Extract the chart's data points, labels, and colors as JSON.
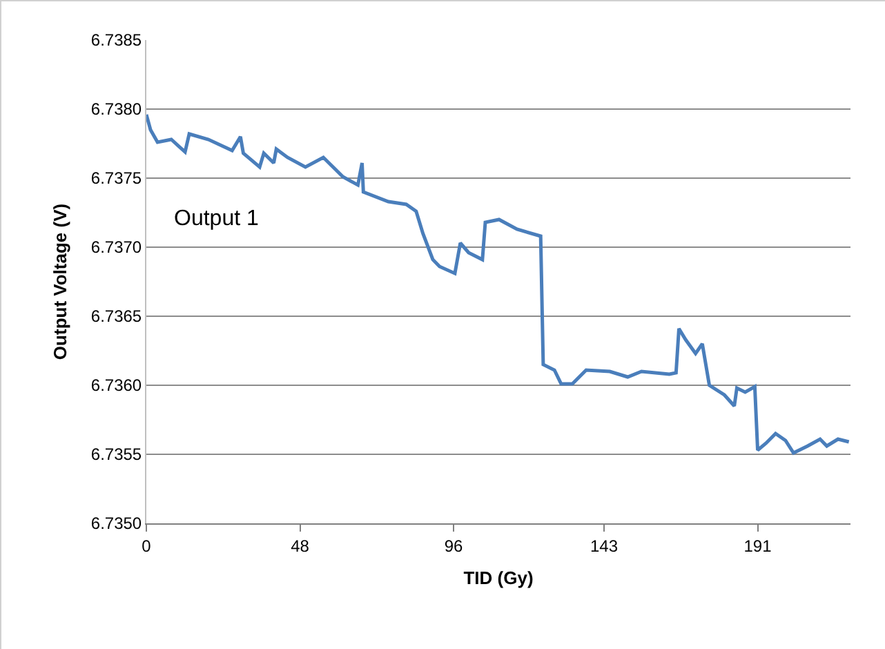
{
  "chart_data": {
    "type": "line",
    "xlabel": "TID (Gy)",
    "ylabel": "Output Voltage (V)",
    "annotations": [
      "Output 1"
    ],
    "x": [
      0,
      1.3,
      3.5,
      7.8,
      12.1,
      13.4,
      19.4,
      26.8,
      29.4,
      30.3,
      35.4,
      36.7,
      39.8,
      40.6,
      44.1,
      49.7,
      55.3,
      61.4,
      66.1,
      67.4,
      67.8,
      75.6,
      81.2,
      84.3,
      86.4,
      89.5,
      91.6,
      96.4,
      98.1,
      100.7,
      105.0,
      105.9,
      110.2,
      115.8,
      123.2,
      124.0,
      127.5,
      129.6,
      133.1,
      137.4,
      144.8,
      150.4,
      154.7,
      163.4,
      165.5,
      166.4,
      168.5,
      171.6,
      173.7,
      175.9,
      180.6,
      183.7,
      184.5,
      187.1,
      190.1,
      191.0,
      193.6,
      196.6,
      199.7,
      202.2,
      206.6,
      210.5,
      212.6,
      216.1,
      219.5
    ],
    "series": [
      {
        "color": "#4a7ebb",
        "values": [
          6.73796,
          6.73785,
          6.73776,
          6.73778,
          6.73769,
          6.73782,
          6.73778,
          6.7377,
          6.7378,
          6.73768,
          6.73758,
          6.73768,
          6.73761,
          6.73771,
          6.73765,
          6.73758,
          6.73765,
          6.73751,
          6.73745,
          6.73761,
          6.7374,
          6.73733,
          6.73731,
          6.73726,
          6.7371,
          6.73691,
          6.73686,
          6.73681,
          6.73703,
          6.73696,
          6.73691,
          6.73718,
          6.7372,
          6.73713,
          6.73708,
          6.73615,
          6.73611,
          6.73601,
          6.73601,
          6.73611,
          6.7361,
          6.73606,
          6.7361,
          6.73608,
          6.73609,
          6.73641,
          6.73633,
          6.73623,
          6.7363,
          6.736,
          6.73593,
          6.73585,
          6.73598,
          6.73595,
          6.73599,
          6.73553,
          6.73558,
          6.73565,
          6.7356,
          6.73551,
          6.73556,
          6.73561,
          6.73556,
          6.73561,
          6.73559
        ]
      }
    ],
    "xlim": [
      0,
      220
    ],
    "xticks": [
      0,
      48,
      96,
      143,
      191
    ],
    "ylim": [
      6.735,
      6.7385
    ],
    "yticks": [
      {
        "value": 6.735,
        "label": "6.7350"
      },
      {
        "value": 6.7355,
        "label": "6.7355"
      },
      {
        "value": 6.736,
        "label": "6.7360"
      },
      {
        "value": 6.7365,
        "label": "6.7365"
      },
      {
        "value": 6.737,
        "label": "6.7370"
      },
      {
        "value": 6.7375,
        "label": "6.7375"
      },
      {
        "value": 6.738,
        "label": "6.7380"
      },
      {
        "value": 6.7385,
        "label": "6.7385"
      }
    ],
    "grid": "y",
    "line_style": "solid",
    "marker": "none"
  }
}
